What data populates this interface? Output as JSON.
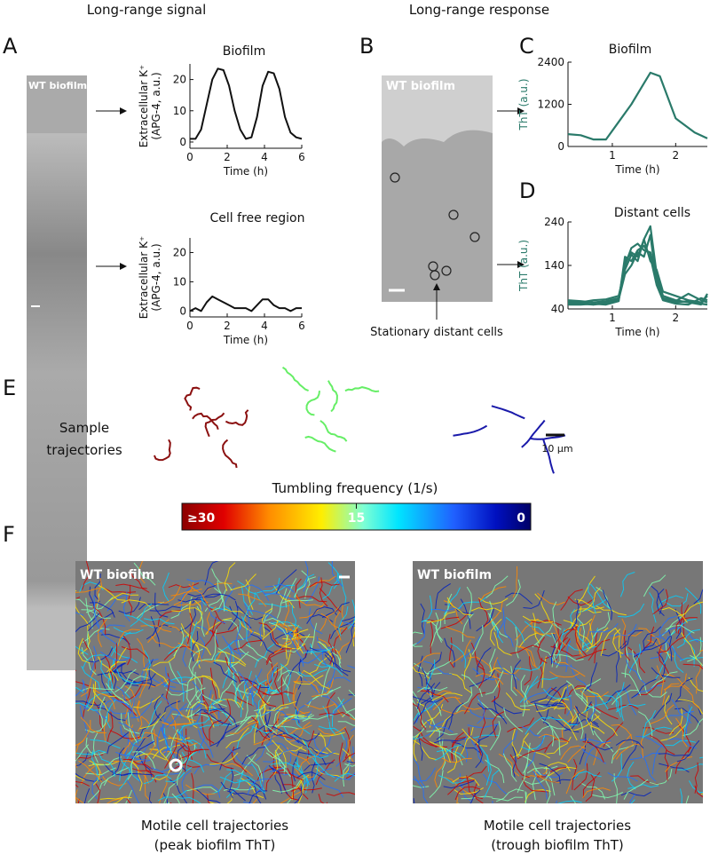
{
  "headers": [
    "Long-range signal",
    "Long-range response"
  ],
  "panel_labels": [
    "A",
    "B",
    "C",
    "D",
    "E",
    "F"
  ],
  "image_label": "WT biofilm",
  "b_annotation": "Stationary distant cells",
  "e_label": [
    "Sample",
    "trajectories"
  ],
  "scale_bar": "10 µm",
  "colorbar": {
    "title": "Tumbling frequency (1/s)",
    "lim": [
      30,
      0
    ],
    "ticks": [
      {
        "value": 30,
        "label": "≥30"
      },
      15,
      0
    ]
  },
  "f_captions": [
    [
      "Motile cell trajectories",
      "(peak biofilm ThT)"
    ],
    [
      "Motile cell trajectories",
      "(trough biofilm ThT)"
    ]
  ],
  "chart_data": [
    {
      "type": "line",
      "title": "Biofilm",
      "xlabel": "Time (h)",
      "ylabel": [
        "Extracellular K⁺",
        "(APG-4, a.u.)"
      ],
      "x": [
        0,
        0.3,
        0.6,
        0.9,
        1.2,
        1.5,
        1.8,
        2.1,
        2.4,
        2.7,
        3.0,
        3.3,
        3.6,
        3.9,
        4.2,
        4.5,
        4.8,
        5.1,
        5.4,
        5.7,
        6.0
      ],
      "xlim": [
        0,
        6
      ],
      "xticks": [
        0,
        2,
        4,
        6
      ],
      "ylim": [
        -2,
        25
      ],
      "yticks": [
        0,
        10,
        20
      ],
      "series": [
        {
          "color": "#111111",
          "values": [
            1,
            1,
            4,
            12,
            20,
            23.5,
            23,
            18,
            10,
            4,
            1,
            1.5,
            8,
            18,
            22.5,
            22,
            17,
            8,
            3,
            1.5,
            1
          ]
        }
      ]
    },
    {
      "type": "line",
      "title": "Cell free region",
      "xlabel": "Time (h)",
      "ylabel": [
        "Extracellular K⁺",
        "(APG-4, a.u.)"
      ],
      "x": [
        0,
        0.3,
        0.6,
        0.9,
        1.2,
        1.5,
        1.8,
        2.1,
        2.4,
        2.7,
        3.0,
        3.3,
        3.6,
        3.9,
        4.2,
        4.5,
        4.8,
        5.1,
        5.4,
        5.7,
        6.0
      ],
      "xlim": [
        0,
        6
      ],
      "xticks": [
        0,
        2,
        4,
        6
      ],
      "ylim": [
        -2,
        25
      ],
      "yticks": [
        0,
        10,
        20
      ],
      "series": [
        {
          "color": "#111111",
          "values": [
            0,
            1,
            0,
            3,
            5,
            4,
            3,
            2,
            1,
            1,
            1,
            0,
            2,
            4,
            4,
            2,
            1,
            1,
            0,
            1,
            1
          ]
        }
      ]
    },
    {
      "type": "line",
      "title": "Biofilm",
      "xlabel": "Time (h)",
      "ylabel": [
        "ThT (a.u.)"
      ],
      "x": [
        0.3,
        0.5,
        0.7,
        0.9,
        1.1,
        1.3,
        1.5,
        1.6,
        1.75,
        2.0,
        2.3,
        2.5
      ],
      "xlim": [
        0.3,
        2.5
      ],
      "xticks": [
        1,
        2
      ],
      "ylim": [
        0,
        2400
      ],
      "yticks": [
        0,
        1200,
        2400
      ],
      "series": [
        {
          "color": "#2a7a6a",
          "values": [
            350,
            320,
            200,
            200,
            700,
            1200,
            1800,
            2100,
            2000,
            800,
            400,
            230
          ]
        }
      ]
    },
    {
      "type": "line",
      "title": "Distant cells",
      "xlabel": "Time (h)",
      "ylabel": [
        "ThT (a.u.)"
      ],
      "x": [
        0.3,
        0.5,
        0.7,
        0.9,
        1.1,
        1.2,
        1.3,
        1.4,
        1.5,
        1.6,
        1.7,
        1.8,
        2.0,
        2.2,
        2.4,
        2.5
      ],
      "xlim": [
        0.3,
        2.5
      ],
      "xticks": [
        1,
        2
      ],
      "ylim": [
        40,
        240
      ],
      "yticks": [
        40,
        140,
        240
      ],
      "series": [
        {
          "color": "#2a7a6a",
          "values": [
            55,
            52,
            50,
            55,
            60,
            150,
            170,
            160,
            200,
            230,
            120,
            70,
            60,
            55,
            50,
            75
          ]
        },
        {
          "color": "#2a7a6a",
          "values": [
            60,
            58,
            55,
            58,
            65,
            140,
            180,
            190,
            175,
            170,
            110,
            65,
            58,
            75,
            60,
            55
          ]
        },
        {
          "color": "#2a7a6a",
          "values": [
            50,
            50,
            52,
            50,
            58,
            160,
            150,
            175,
            185,
            160,
            95,
            60,
            52,
            50,
            65,
            60
          ]
        },
        {
          "color": "#2a7a6a",
          "values": [
            58,
            55,
            60,
            62,
            70,
            130,
            165,
            150,
            200,
            150,
            130,
            80,
            70,
            60,
            55,
            70
          ]
        },
        {
          "color": "#2a7a6a",
          "values": [
            52,
            55,
            50,
            53,
            62,
            120,
            140,
            170,
            160,
            210,
            100,
            62,
            55,
            58,
            52,
            50
          ]
        }
      ]
    }
  ]
}
